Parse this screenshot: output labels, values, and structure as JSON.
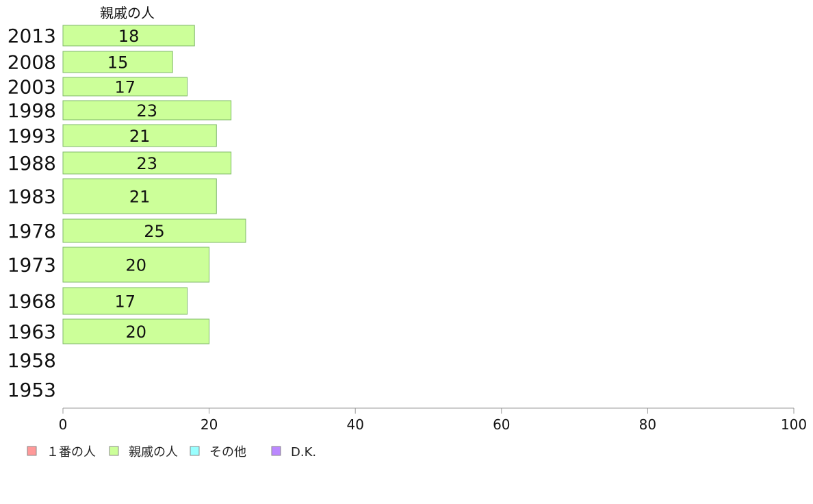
{
  "chart_data": {
    "type": "bar",
    "orientation": "horizontal",
    "categories": [
      "2013",
      "2008",
      "2003",
      "1998",
      "1993",
      "1988",
      "1983",
      "1978",
      "1973",
      "1968",
      "1963",
      "1958",
      "1953"
    ],
    "series": [
      {
        "name": "親戚の人",
        "color": "#ccff99",
        "values": [
          18,
          15,
          17,
          23,
          21,
          23,
          21,
          25,
          20,
          17,
          20,
          null,
          null
        ]
      }
    ],
    "series_title": "親戚の人",
    "xlim": [
      0,
      100
    ],
    "xticks": [
      0,
      20,
      40,
      60,
      80,
      100
    ],
    "grid": false,
    "legend": {
      "placement": "bottom-left",
      "entries": [
        {
          "label": "１番の人",
          "color": "#ff9999"
        },
        {
          "label": "親戚の人",
          "color": "#ccff99"
        },
        {
          "label": "その他",
          "color": "#99ffff"
        },
        {
          "label": "D.K.",
          "color": "#bb88ff"
        }
      ]
    }
  }
}
